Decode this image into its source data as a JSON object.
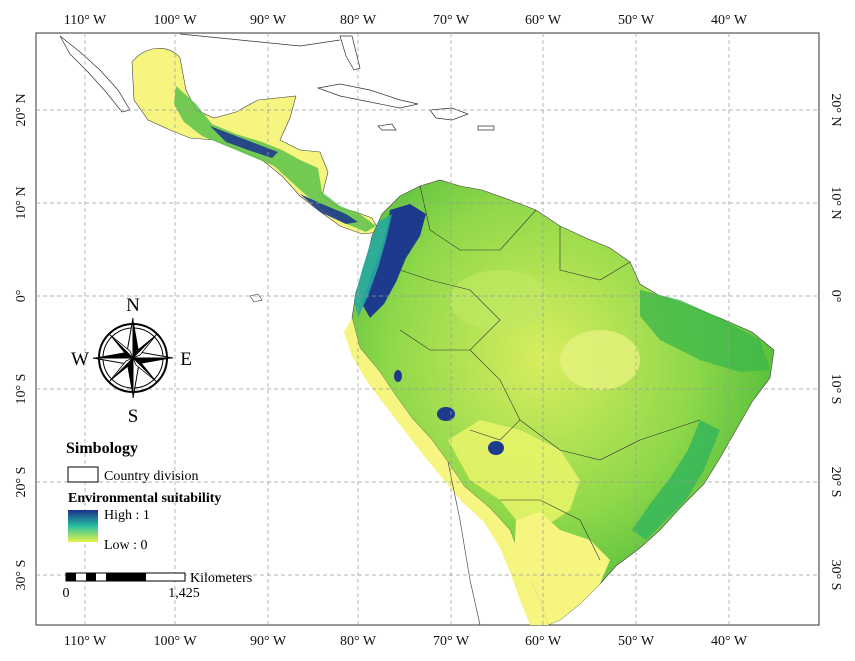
{
  "map": {
    "longitude_ticks": [
      "110° W",
      "100° W",
      "90° W",
      "80° W",
      "70° W",
      "60° W",
      "50° W",
      "40° W"
    ],
    "latitude_ticks": [
      "20° N",
      "10° N",
      "0°",
      "10° S",
      "20° S",
      "30° S"
    ],
    "compass": {
      "north": "N",
      "south": "S",
      "east": "E",
      "west": "W"
    },
    "legend": {
      "title": "Simbology",
      "country_division": "Country division",
      "suitability_title": "Environmental suitability",
      "high_label": "High : 1",
      "low_label": "Low : 0",
      "color_high": "#1a2f8a",
      "color_mid": "#27c0a0",
      "color_low": "#e6f54a"
    },
    "scalebar": {
      "start": "0",
      "end": "1,425",
      "unit": "Kilometers"
    },
    "colors": {
      "land_low": "#f5f580",
      "land_mid": "#7ed24a",
      "land_high": "#1e3a8c",
      "grid": "#999999"
    }
  }
}
